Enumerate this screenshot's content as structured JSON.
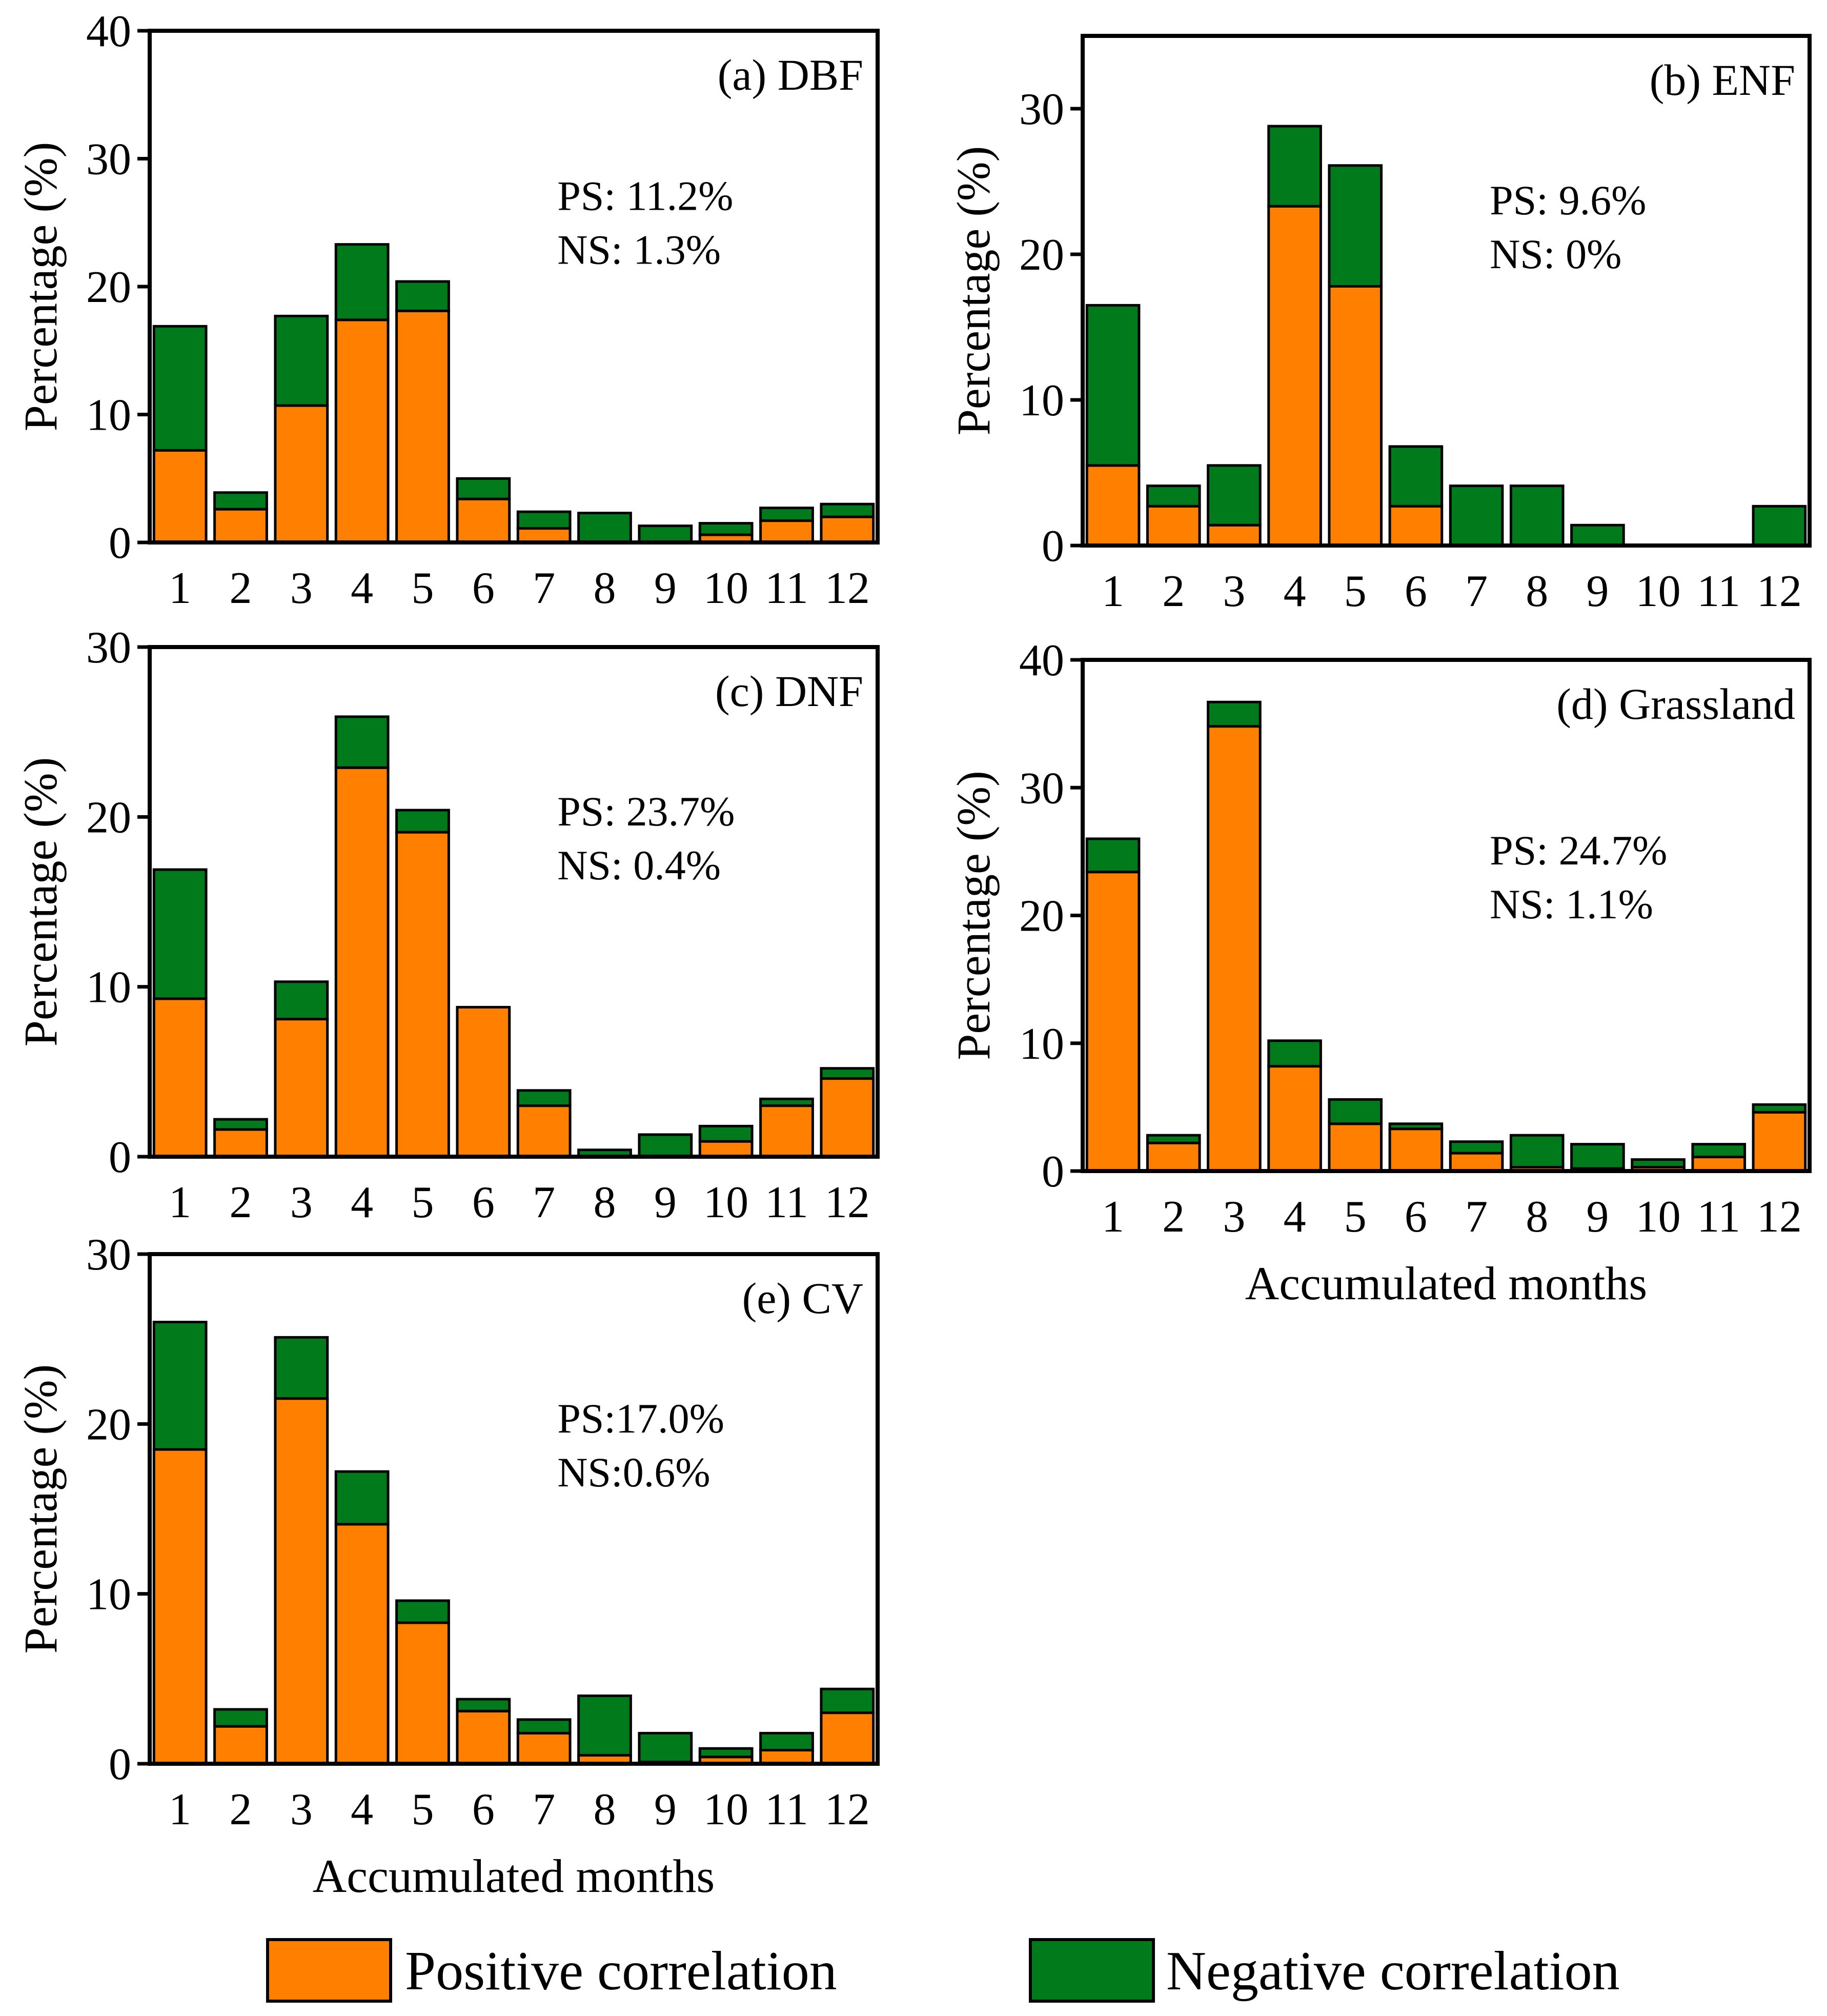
{
  "colors": {
    "positive": "#FF8000",
    "negative": "#007A1A"
  },
  "legend": {
    "positive_label": "Positive correlation",
    "negative_label": "Negative correlation"
  },
  "chart_data": [
    {
      "type": "bar",
      "stacked": true,
      "title": "(a) DBF",
      "ps_text": "PS: 11.2%",
      "ns_text": "NS: 1.3%",
      "xlabel": "",
      "ylabel": "Percentage (%)",
      "ylim": [
        0,
        40
      ],
      "yticks": [
        0,
        10,
        20,
        30,
        40
      ],
      "categories": [
        "1",
        "2",
        "3",
        "4",
        "5",
        "6",
        "7",
        "8",
        "9",
        "10",
        "11",
        "12"
      ],
      "series": [
        {
          "name": "Positive correlation",
          "values": [
            7.2,
            2.6,
            10.7,
            17.4,
            18.1,
            3.4,
            1.1,
            0,
            0,
            0.6,
            1.7,
            2.0
          ]
        },
        {
          "name": "Negative correlation",
          "values": [
            9.7,
            1.3,
            7.0,
            5.9,
            2.3,
            1.6,
            1.3,
            2.3,
            1.3,
            0.9,
            1.0,
            1.0
          ]
        }
      ]
    },
    {
      "type": "bar",
      "stacked": true,
      "title": "(b) ENF",
      "ps_text": "PS: 9.6%",
      "ns_text": "NS: 0%",
      "xlabel": "",
      "ylabel": "Percentage (%)",
      "ylim": [
        0,
        35
      ],
      "yticks": [
        0,
        10,
        20,
        30
      ],
      "categories": [
        "1",
        "2",
        "3",
        "4",
        "5",
        "6",
        "7",
        "8",
        "9",
        "10",
        "11",
        "12"
      ],
      "series": [
        {
          "name": "Positive correlation",
          "values": [
            5.5,
            2.7,
            1.4,
            23.3,
            17.8,
            2.7,
            0,
            0,
            0,
            0,
            0,
            0
          ]
        },
        {
          "name": "Negative correlation",
          "values": [
            11.0,
            1.4,
            4.1,
            5.5,
            8.3,
            4.1,
            4.1,
            4.1,
            1.4,
            0,
            0,
            2.7
          ]
        }
      ]
    },
    {
      "type": "bar",
      "stacked": true,
      "title": "(c) DNF",
      "ps_text": "PS: 23.7%",
      "ns_text": "NS: 0.4%",
      "xlabel": "",
      "ylabel": "Percentage (%)",
      "ylim": [
        0,
        30
      ],
      "yticks": [
        0,
        10,
        20,
        30
      ],
      "categories": [
        "1",
        "2",
        "3",
        "4",
        "5",
        "6",
        "7",
        "8",
        "9",
        "10",
        "11",
        "12"
      ],
      "series": [
        {
          "name": "Positive correlation",
          "values": [
            9.3,
            1.6,
            8.1,
            22.9,
            19.1,
            8.8,
            3.0,
            0,
            0,
            0.9,
            3.0,
            4.6
          ]
        },
        {
          "name": "Negative correlation",
          "values": [
            7.6,
            0.6,
            2.2,
            3.0,
            1.3,
            0,
            0.9,
            0.4,
            1.3,
            0.9,
            0.4,
            0.6
          ]
        }
      ]
    },
    {
      "type": "bar",
      "stacked": true,
      "title": "(d) Grassland",
      "ps_text": "PS: 24.7%",
      "ns_text": "NS: 1.1%",
      "xlabel": "Accumulated months",
      "ylabel": "Percentage (%)",
      "ylim": [
        0,
        40
      ],
      "yticks": [
        0,
        10,
        20,
        30,
        40
      ],
      "categories": [
        "1",
        "2",
        "3",
        "4",
        "5",
        "6",
        "7",
        "8",
        "9",
        "10",
        "11",
        "12"
      ],
      "series": [
        {
          "name": "Positive correlation",
          "values": [
            23.4,
            2.2,
            34.8,
            8.2,
            3.7,
            3.3,
            1.4,
            0.3,
            0.2,
            0.3,
            1.1,
            4.6
          ]
        },
        {
          "name": "Negative correlation",
          "values": [
            2.6,
            0.6,
            1.9,
            2.0,
            1.9,
            0.4,
            0.9,
            2.5,
            1.9,
            0.6,
            1.0,
            0.6
          ]
        }
      ]
    },
    {
      "type": "bar",
      "stacked": true,
      "title": "(e) CV",
      "ps_text": "PS:17.0%",
      "ns_text": "NS:0.6%",
      "xlabel": "Accumulated months",
      "ylabel": "Percentage (%)",
      "ylim": [
        0,
        30
      ],
      "yticks": [
        0,
        10,
        20,
        30
      ],
      "categories": [
        "1",
        "2",
        "3",
        "4",
        "5",
        "6",
        "7",
        "8",
        "9",
        "10",
        "11",
        "12"
      ],
      "series": [
        {
          "name": "Positive correlation",
          "values": [
            18.5,
            2.2,
            21.5,
            14.1,
            8.3,
            3.1,
            1.8,
            0.5,
            0.1,
            0.4,
            0.8,
            3.0
          ]
        },
        {
          "name": "Negative correlation",
          "values": [
            7.5,
            1.0,
            3.6,
            3.1,
            1.3,
            0.7,
            0.8,
            3.5,
            1.7,
            0.5,
            1.0,
            1.4
          ]
        }
      ]
    }
  ]
}
